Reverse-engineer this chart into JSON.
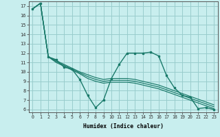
{
  "xlabel": "Humidex (Indice chaleur)",
  "bg_color": "#c8eeee",
  "grid_color": "#99cccc",
  "line_color": "#1a7a6a",
  "xlim": [
    -0.5,
    23.5
  ],
  "ylim": [
    5.7,
    17.5
  ],
  "xticks": [
    0,
    1,
    2,
    3,
    4,
    5,
    6,
    7,
    8,
    9,
    10,
    11,
    12,
    13,
    14,
    15,
    16,
    17,
    18,
    19,
    20,
    21,
    22,
    23
  ],
  "yticks": [
    6,
    7,
    8,
    9,
    10,
    11,
    12,
    13,
    14,
    15,
    16,
    17
  ],
  "main_line": [
    16.7,
    17.3,
    11.6,
    11.3,
    10.5,
    10.3,
    9.2,
    7.5,
    6.2,
    7.0,
    9.3,
    10.8,
    12.0,
    12.0,
    12.0,
    12.1,
    11.7,
    9.6,
    8.3,
    7.5,
    7.3,
    6.1,
    6.2,
    6.0
  ],
  "parallel1": [
    16.7,
    17.3,
    11.6,
    11.2,
    10.8,
    10.4,
    10.0,
    9.7,
    9.4,
    9.2,
    9.3,
    9.3,
    9.3,
    9.2,
    9.0,
    8.8,
    8.6,
    8.3,
    8.0,
    7.7,
    7.4,
    7.1,
    6.8,
    6.5
  ],
  "parallel2": [
    16.7,
    17.3,
    11.6,
    11.1,
    10.7,
    10.3,
    9.9,
    9.5,
    9.2,
    9.0,
    9.1,
    9.1,
    9.1,
    9.0,
    8.8,
    8.6,
    8.4,
    8.1,
    7.8,
    7.5,
    7.2,
    6.9,
    6.6,
    6.3
  ],
  "parallel3": [
    16.7,
    17.3,
    11.6,
    11.0,
    10.6,
    10.2,
    9.8,
    9.3,
    9.0,
    8.8,
    8.9,
    8.9,
    8.9,
    8.8,
    8.6,
    8.4,
    8.2,
    7.9,
    7.6,
    7.3,
    7.0,
    6.7,
    6.4,
    6.1
  ]
}
